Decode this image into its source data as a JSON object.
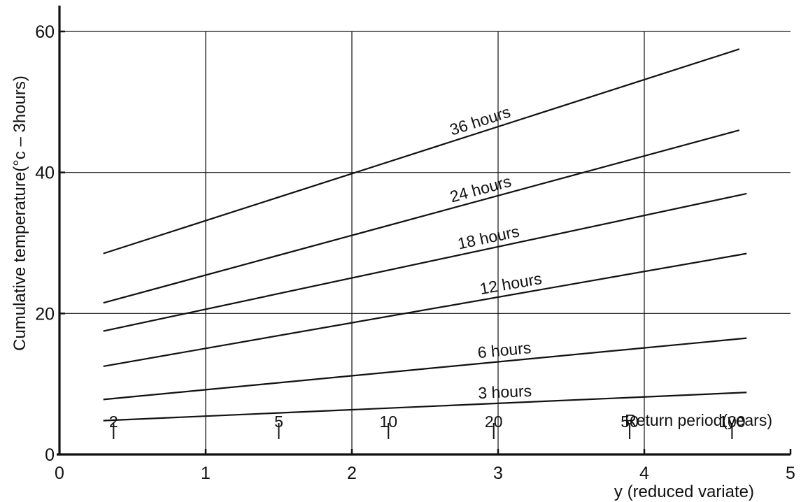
{
  "chart_data": {
    "type": "line",
    "title": "",
    "xlabel": "y (reduced variate)",
    "ylabel": "Cumulative temperature(°c – 3hours)",
    "xlim": [
      0,
      5
    ],
    "ylim": [
      0,
      60
    ],
    "grid": true,
    "x_ticks": [
      0,
      1,
      2,
      3,
      4,
      5
    ],
    "x_tick_labels": [
      "0",
      "1",
      "2",
      "3",
      "4",
      "5"
    ],
    "y_ticks": [
      0,
      20,
      40,
      60
    ],
    "y_tick_labels": [
      "0",
      "20",
      "40",
      "60"
    ],
    "secondary_x_axis": {
      "label": "Return period(years)",
      "ticks": [
        {
          "label": "2",
          "y": 0.37
        },
        {
          "label": "5",
          "y": 1.5
        },
        {
          "label": "10",
          "y": 2.25
        },
        {
          "label": "20",
          "y": 2.97
        },
        {
          "label": "50",
          "y": 3.9
        },
        {
          "label": "100",
          "y": 4.6
        }
      ]
    },
    "series": [
      {
        "name": "36 hours",
        "x": [
          0.3,
          4.65
        ],
        "y": [
          28.5,
          57.5
        ],
        "label_at_x": 2.9
      },
      {
        "name": "24 hours",
        "x": [
          0.3,
          4.65
        ],
        "y": [
          21.5,
          46.0
        ],
        "label_at_x": 2.9
      },
      {
        "name": "18 hours",
        "x": [
          0.3,
          4.7
        ],
        "y": [
          17.5,
          37.0
        ],
        "label_at_x": 2.95
      },
      {
        "name": "12 hours",
        "x": [
          0.3,
          4.7
        ],
        "y": [
          12.5,
          28.5
        ],
        "label_at_x": 3.1
      },
      {
        "name": "6 hours",
        "x": [
          0.3,
          4.7
        ],
        "y": [
          7.8,
          16.5
        ],
        "label_at_x": 3.05
      },
      {
        "name": "3 hours",
        "x": [
          0.3,
          4.7
        ],
        "y": [
          4.8,
          8.8
        ],
        "label_at_x": 3.05
      }
    ]
  },
  "colors": {
    "line": "#111111",
    "grid": "#111111",
    "background": "#ffffff"
  }
}
